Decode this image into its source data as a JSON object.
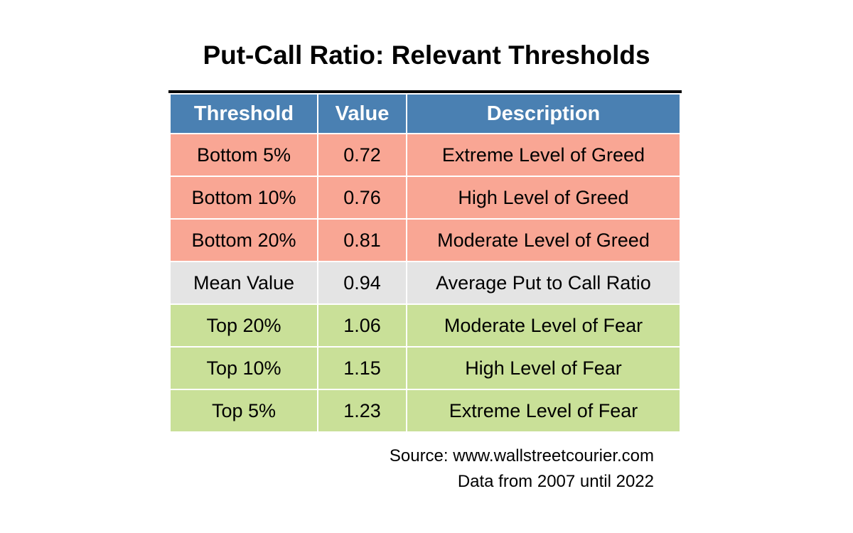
{
  "title": "Put-Call Ratio: Relevant Thresholds",
  "colors": {
    "page_bg": "#FFFFFF",
    "top_rule": "#000000",
    "header_bg": "#4A80B2",
    "header_text": "#FFFFFF",
    "greed_bg": "#F9A694",
    "mean_bg": "#E4E4E4",
    "fear_bg": "#C9E098",
    "cell_text": "#000000",
    "grid_line": "#FFFFFF"
  },
  "table": {
    "columns": [
      "Threshold",
      "Value",
      "Description"
    ],
    "rows": [
      {
        "threshold": "Bottom 5%",
        "value": "0.72",
        "description": "Extreme Level of Greed",
        "category": "greed"
      },
      {
        "threshold": "Bottom 10%",
        "value": "0.76",
        "description": "High Level of Greed",
        "category": "greed"
      },
      {
        "threshold": "Bottom 20%",
        "value": "0.81",
        "description": "Moderate Level of Greed",
        "category": "greed"
      },
      {
        "threshold": "Mean Value",
        "value": "0.94",
        "description": "Average Put to Call Ratio",
        "category": "mean"
      },
      {
        "threshold": "Top 20%",
        "value": "1.06",
        "description": "Moderate Level of Fear",
        "category": "fear"
      },
      {
        "threshold": "Top 10%",
        "value": "1.15",
        "description": "High Level of Fear",
        "category": "fear"
      },
      {
        "threshold": "Top 5%",
        "value": "1.23",
        "description": "Extreme Level of Fear",
        "category": "fear"
      }
    ]
  },
  "source": {
    "line1": "Source: www.wallstreetcourier.com",
    "line2": "Data from 2007 until 2022"
  },
  "chart_data": {
    "type": "table",
    "title": "Put-Call Ratio: Relevant Thresholds",
    "columns": [
      "Threshold",
      "Value",
      "Description"
    ],
    "rows": [
      [
        "Bottom 5%",
        0.72,
        "Extreme Level of Greed"
      ],
      [
        "Bottom 10%",
        0.76,
        "High Level of Greed"
      ],
      [
        "Bottom 20%",
        0.81,
        "Moderate Level of Greed"
      ],
      [
        "Mean Value",
        0.94,
        "Average Put to Call Ratio"
      ],
      [
        "Top 20%",
        1.06,
        "Moderate Level of Fear"
      ],
      [
        "Top 10%",
        1.15,
        "High Level of Fear"
      ],
      [
        "Top 5%",
        1.23,
        "Extreme Level of Fear"
      ]
    ],
    "row_groups": [
      "greed",
      "greed",
      "greed",
      "mean",
      "fear",
      "fear",
      "fear"
    ],
    "annotations": [
      "Source: www.wallstreetcourier.com",
      "Data from 2007 until 2022"
    ],
    "legend_position": "none",
    "grid": false
  }
}
